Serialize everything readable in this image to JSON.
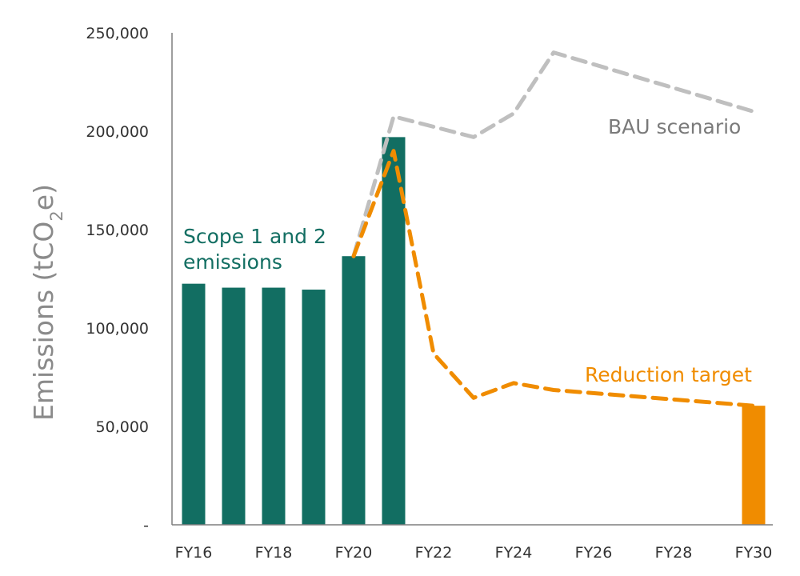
{
  "chart_data": {
    "type": "bar",
    "ylabel": {
      "main": "Emissions (tCO",
      "sub": "2",
      "end": "e)"
    },
    "ylim": [
      0,
      250000
    ],
    "y_ticks": [
      {
        "value": 0,
        "label": "-"
      },
      {
        "value": 50000,
        "label": "50,000"
      },
      {
        "value": 100000,
        "label": "100,000"
      },
      {
        "value": 150000,
        "label": "150,000"
      },
      {
        "value": 200000,
        "label": "200,000"
      },
      {
        "value": 250000,
        "label": "250,000"
      }
    ],
    "categories": [
      "FY16",
      "FY17",
      "FY18",
      "FY19",
      "FY20",
      "FY21",
      "FY22",
      "FY23",
      "FY24",
      "FY25",
      "FY26",
      "FY27",
      "FY28",
      "FY29",
      "FY30"
    ],
    "x_tick_labels": [
      "FY16",
      "FY18",
      "FY20",
      "FY22",
      "FY24",
      "FY26",
      "FY28",
      "FY30"
    ],
    "series": [
      {
        "name": "Scope 1 and 2 emissions",
        "kind": "bar",
        "color": "#126e62",
        "values": [
          122500,
          120500,
          120500,
          119500,
          136500,
          197000,
          null,
          null,
          null,
          null,
          null,
          null,
          null,
          null,
          null
        ]
      },
      {
        "name": "",
        "kind": "bar",
        "color": "#f08c00",
        "values": [
          null,
          null,
          null,
          null,
          null,
          null,
          null,
          null,
          null,
          null,
          null,
          null,
          null,
          null,
          60500
        ]
      },
      {
        "name": "BAU scenario",
        "kind": "dashed-line",
        "color": "#bfbfbf",
        "points": [
          {
            "x": "FY20",
            "y": 136500
          },
          {
            "x": "FY21",
            "y": 207500
          },
          {
            "x": "FY23",
            "y": 197000
          },
          {
            "x": "FY24",
            "y": 209000
          },
          {
            "x": "FY25",
            "y": 240000
          },
          {
            "x": "FY30",
            "y": 210000
          }
        ]
      },
      {
        "name": "Reduction target",
        "kind": "dashed-line",
        "color": "#f08c00",
        "points": [
          {
            "x": "FY20",
            "y": 136500
          },
          {
            "x": "FY21",
            "y": 190000
          },
          {
            "x": "FY22",
            "y": 87000
          },
          {
            "x": "FY23",
            "y": 64500
          },
          {
            "x": "FY24",
            "y": 72000
          },
          {
            "x": "FY25",
            "y": 68500
          },
          {
            "x": "FY30",
            "y": 60500
          }
        ]
      }
    ],
    "annotations": [
      {
        "lines": [
          "Scope 1 and 2",
          "emissions"
        ],
        "color": "#126e62"
      },
      {
        "lines": [
          "BAU scenario"
        ],
        "color": "#7a7a7a"
      },
      {
        "lines": [
          "Reduction target"
        ],
        "color": "#f08c00"
      }
    ],
    "grid": false,
    "legend": "none"
  }
}
